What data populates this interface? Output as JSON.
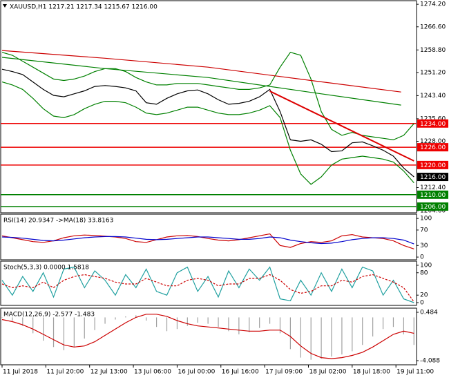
{
  "chart_data": [
    {
      "type": "line",
      "title": "XAUUSD,H1  1217.21 1217.34 1215.67 1216.00",
      "xlim": [
        0,
        161
      ],
      "ylim": [
        1203.9,
        1275.4
      ],
      "xticks": [
        {
          "value": 0,
          "label": "11 Jul 2018"
        },
        {
          "value": 17,
          "label": "11 Jul 20:00"
        },
        {
          "value": 34,
          "label": "12 Jul 13:00"
        },
        {
          "value": 51,
          "label": "13 Jul 06:00"
        },
        {
          "value": 68,
          "label": "16 Jul 00:00"
        },
        {
          "value": 85,
          "label": "16 Jul 16:00"
        },
        {
          "value": 102,
          "label": "17 Jul 09:00"
        },
        {
          "value": 119,
          "label": "18 Jul 02:00"
        },
        {
          "value": 136,
          "label": "18 Jul 18:00"
        },
        {
          "value": 153,
          "label": "19 Jul 11:00"
        }
      ],
      "yticks": [
        {
          "value": 1274.2,
          "label": "1274.20"
        },
        {
          "value": 1266.6,
          "label": "1266.60"
        },
        {
          "value": 1258.8,
          "label": "1258.80"
        },
        {
          "value": 1251.2,
          "label": "1251.20"
        },
        {
          "value": 1243.4,
          "label": "1243.40"
        },
        {
          "value": 1235.6,
          "label": "1235.60"
        },
        {
          "value": 1228,
          "label": "1228.00"
        },
        {
          "value": 1212.4,
          "label": "1212.40"
        },
        {
          "value": 1204.6,
          "label": "1204.60"
        }
      ],
      "x": [
        0,
        4,
        8,
        12,
        16,
        20,
        24,
        28,
        32,
        36,
        40,
        44,
        48,
        52,
        56,
        60,
        64,
        68,
        72,
        76,
        80,
        84,
        88,
        92,
        96,
        100,
        104,
        108,
        112,
        116,
        120,
        124,
        128,
        132,
        136,
        140,
        144,
        148,
        152,
        156,
        160
      ],
      "series": [
        {
          "color": "#008000",
          "values": [
            1258,
            1257,
            1255,
            1253,
            1251,
            1249,
            1248.5,
            1249,
            1250,
            1251.5,
            1252.5,
            1252.5,
            1251.5,
            1249.5,
            1248,
            1247,
            1247,
            1247.5,
            1247.5,
            1247.5,
            1247,
            1246.5,
            1246,
            1245.5,
            1245.5,
            1246,
            1247,
            1253,
            1258,
            1257,
            1249,
            1238,
            1232,
            1230,
            1231,
            1230,
            1229.5,
            1229,
            1228.5,
            1230,
            1234
          ]
        },
        {
          "color": "#008000",
          "values": [
            1248,
            1247,
            1245.5,
            1242.5,
            1239,
            1236.5,
            1236,
            1237,
            1239,
            1240.5,
            1241.5,
            1241.5,
            1241,
            1239.5,
            1237.5,
            1237,
            1237.5,
            1238.5,
            1239.5,
            1239.5,
            1238.5,
            1237.5,
            1237,
            1237,
            1237.5,
            1238.5,
            1240,
            1236,
            1225,
            1217,
            1213.5,
            1216,
            1220,
            1222,
            1222.5,
            1223,
            1222.5,
            1222,
            1221,
            1218,
            1214
          ]
        },
        {
          "color": "#cc0000",
          "x": [
            0,
            40,
            80,
            120,
            155
          ],
          "values": [
            1258.6,
            1256,
            1253,
            1248.5,
            1244.6
          ]
        },
        {
          "color": "#008000",
          "x": [
            0,
            40,
            80,
            120,
            155
          ],
          "values": [
            1256.3,
            1252.5,
            1249.5,
            1244.5,
            1240.2
          ]
        },
        {
          "color": "#000000",
          "values": [
            1252.3,
            1251.5,
            1250.5,
            1248,
            1245.5,
            1243.5,
            1243,
            1244,
            1245,
            1246.5,
            1246.8,
            1246.5,
            1246,
            1245,
            1241,
            1240.5,
            1242.5,
            1244,
            1245,
            1245.3,
            1244,
            1242,
            1240.5,
            1240.8,
            1241.5,
            1243,
            1245.5,
            1238,
            1228.5,
            1228,
            1228.5,
            1227,
            1224.5,
            1224.8,
            1227.5,
            1227.8,
            1226.5,
            1225,
            1223,
            1219,
            1216
          ]
        }
      ],
      "trendline": {
        "color": "#dd0000",
        "x": [
          104,
          160
        ],
        "values": [
          1244.9,
          1221.4
        ]
      },
      "levels": [
        {
          "value": 1234,
          "label": "1234.00",
          "color": "#ee0000"
        },
        {
          "value": 1226,
          "label": "1226.00",
          "color": "#ee0000"
        },
        {
          "value": 1220,
          "label": "1220.00",
          "color": "#ee0000"
        },
        {
          "value": 1210,
          "label": "1210.00",
          "color": "#008000"
        },
        {
          "value": 1206,
          "label": "1206.00",
          "color": "#008000"
        }
      ],
      "last_price": {
        "value": 1216,
        "label": "1216.00"
      }
    },
    {
      "type": "line",
      "title": "RSI(14) 20.9347   ->MA(18) 33.8163",
      "xlim": [
        0,
        161
      ],
      "ylim": [
        -7,
        111
      ],
      "yticks": [
        100,
        70,
        30,
        0
      ],
      "x": [
        0,
        4,
        8,
        12,
        16,
        20,
        24,
        28,
        32,
        36,
        40,
        44,
        48,
        52,
        56,
        60,
        64,
        68,
        72,
        76,
        80,
        84,
        88,
        92,
        96,
        100,
        104,
        108,
        112,
        116,
        120,
        124,
        128,
        132,
        136,
        140,
        144,
        148,
        152,
        156,
        160
      ],
      "series": [
        {
          "color": "#cc0000",
          "values": [
            55,
            50,
            45,
            40,
            38,
            42,
            50,
            55,
            57,
            56,
            54,
            52,
            48,
            40,
            38,
            45,
            52,
            55,
            56,
            53,
            48,
            44,
            42,
            45,
            50,
            55,
            60,
            30,
            25,
            35,
            40,
            38,
            42,
            55,
            58,
            52,
            50,
            48,
            42,
            30,
            21
          ]
        },
        {
          "color": "#0000cc",
          "values": [
            52,
            51,
            49,
            46,
            43,
            42,
            44,
            47,
            50,
            52,
            53,
            53,
            52,
            49,
            46,
            45,
            46,
            48,
            50,
            52,
            52,
            50,
            48,
            46,
            46,
            48,
            52,
            50,
            44,
            40,
            37,
            35,
            36,
            40,
            45,
            48,
            50,
            50,
            48,
            44,
            34
          ]
        }
      ]
    },
    {
      "type": "line",
      "title": "Stoch(5,3,3) 0.0000 1.5818",
      "xlim": [
        0,
        161
      ],
      "ylim": [
        -7.4,
        111
      ],
      "yticks": [
        100,
        80,
        20,
        0
      ],
      "x": [
        0,
        4,
        8,
        12,
        16,
        20,
        24,
        28,
        32,
        36,
        40,
        44,
        48,
        52,
        56,
        60,
        64,
        68,
        72,
        76,
        80,
        84,
        88,
        92,
        96,
        100,
        104,
        108,
        112,
        116,
        120,
        124,
        128,
        132,
        136,
        140,
        144,
        148,
        152,
        156,
        160
      ],
      "series": [
        {
          "color": "#20a0a0",
          "values": [
            60,
            20,
            70,
            30,
            80,
            15,
            90,
            95,
            40,
            85,
            60,
            20,
            75,
            40,
            90,
            30,
            20,
            80,
            95,
            30,
            70,
            15,
            85,
            40,
            90,
            60,
            95,
            10,
            5,
            60,
            20,
            80,
            30,
            90,
            40,
            95,
            85,
            20,
            60,
            10,
            0
          ]
        },
        {
          "color": "#cc0000",
          "dash": true,
          "values": [
            50,
            40,
            45,
            40,
            55,
            40,
            60,
            70,
            75,
            70,
            65,
            55,
            50,
            50,
            65,
            55,
            45,
            45,
            60,
            65,
            60,
            45,
            50,
            50,
            65,
            65,
            75,
            60,
            35,
            25,
            30,
            45,
            45,
            60,
            55,
            70,
            75,
            65,
            55,
            40,
            2
          ]
        }
      ]
    },
    {
      "type": "line",
      "title": "MACD(12,26,9) -2.577 -1.483",
      "xlim": [
        0,
        161
      ],
      "ylim": [
        -4.48,
        0.876
      ],
      "yticks": [
        0.484,
        -4.088
      ],
      "x": [
        0,
        4,
        8,
        12,
        16,
        20,
        24,
        28,
        32,
        36,
        40,
        44,
        48,
        52,
        56,
        60,
        64,
        68,
        72,
        76,
        80,
        84,
        88,
        92,
        96,
        100,
        104,
        108,
        112,
        116,
        120,
        124,
        128,
        132,
        136,
        140,
        144,
        148,
        152,
        156,
        160
      ],
      "series": [
        {
          "type": "bar",
          "color": "#a0a0a0",
          "values": [
            0,
            -0.3,
            -0.8,
            -1.5,
            -2.2,
            -2.8,
            -3.1,
            -2.8,
            -2,
            -1.2,
            -0.6,
            -0.2,
            0.1,
            0.2,
            -0.3,
            -0.9,
            -1.3,
            -1.1,
            -0.8,
            -0.5,
            -0.6,
            -0.9,
            -1.3,
            -1.6,
            -1.4,
            -1,
            -0.6,
            -1.5,
            -3,
            -3.8,
            -4,
            -3.9,
            -3.7,
            -3.5,
            -3.2,
            -2.6,
            -1.8,
            -1.1,
            -0.9,
            -1.6,
            -2.6
          ]
        },
        {
          "color": "#cc0000",
          "values": [
            -0.2,
            -0.4,
            -0.7,
            -1.1,
            -1.6,
            -2.1,
            -2.6,
            -2.8,
            -2.7,
            -2.3,
            -1.7,
            -1.1,
            -0.5,
            0,
            0.3,
            0.3,
            0.1,
            -0.3,
            -0.6,
            -0.8,
            -0.9,
            -1,
            -1.1,
            -1.2,
            -1.3,
            -1.3,
            -1.2,
            -1.2,
            -1.8,
            -2.7,
            -3.4,
            -3.8,
            -3.9,
            -3.8,
            -3.6,
            -3.3,
            -2.8,
            -2.2,
            -1.6,
            -1.3,
            -1.5
          ]
        }
      ]
    }
  ]
}
